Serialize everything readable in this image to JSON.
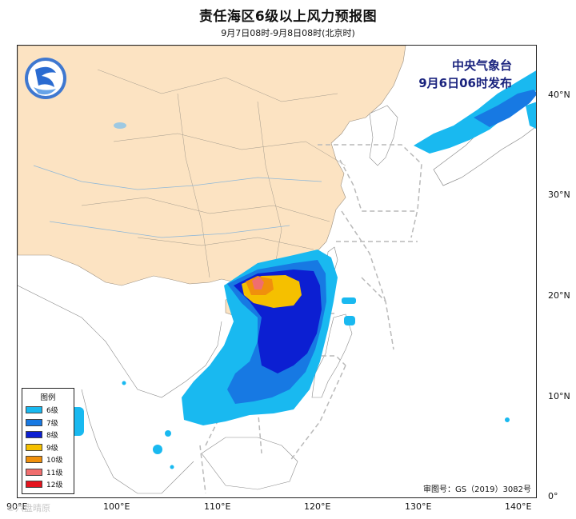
{
  "title": "责任海区6级以上风力预报图",
  "subtitle": "9月7日08时-9月8日08时(北京时)",
  "issuer": {
    "line1": "中央气象台",
    "line2": "9月6日06时发布"
  },
  "legend": {
    "title": "图例",
    "items": [
      {
        "label": "6级",
        "color": "#19b9f0"
      },
      {
        "label": "7级",
        "color": "#1779e3"
      },
      {
        "label": "8级",
        "color": "#0c1fd2"
      },
      {
        "label": "9级",
        "color": "#f5c000"
      },
      {
        "label": "10级",
        "color": "#f0900c"
      },
      {
        "label": "11级",
        "color": "#f06e6e"
      },
      {
        "label": "12级",
        "color": "#e5141e"
      }
    ]
  },
  "axes": {
    "lat_labels": [
      "40°N",
      "30°N",
      "20°N",
      "10°N",
      "0°"
    ],
    "lon_labels": [
      "90°E",
      "100°E",
      "110°E",
      "120°E",
      "130°E",
      "140°E"
    ]
  },
  "approval": "审图号：GS（2019）3082号",
  "watermark": "©六盘晴原",
  "colors": {
    "land": "#fce3c2",
    "wind_6": "#19b9f0",
    "wind_7": "#1779e3",
    "wind_8": "#0c1fd2",
    "wind_9": "#f5c000",
    "wind_10": "#f0900c",
    "wind_11": "#f06e6e",
    "wind_12": "#e5141e"
  }
}
